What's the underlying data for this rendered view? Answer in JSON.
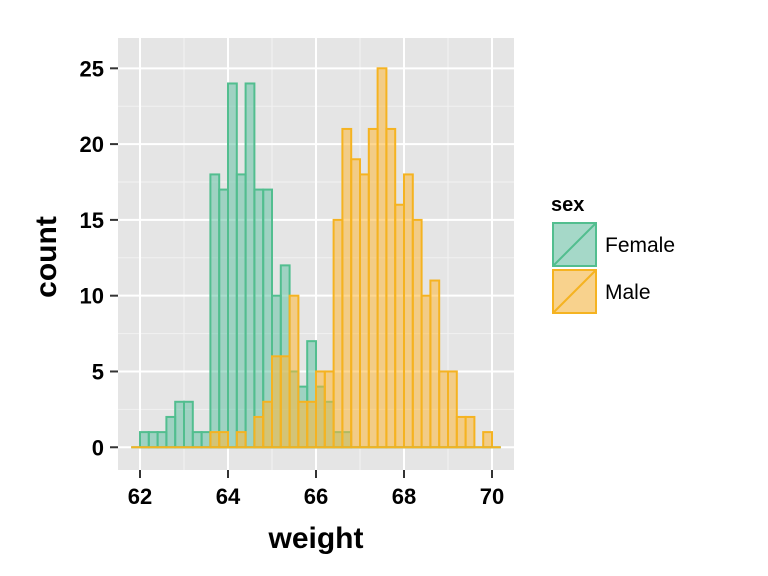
{
  "chart_data": {
    "type": "histogram",
    "title": "",
    "xlabel": "weight",
    "ylabel": "count",
    "xlim": [
      61.5,
      70.5
    ],
    "ylim": [
      -1.5,
      27
    ],
    "x_ticks": [
      62,
      64,
      66,
      68,
      70
    ],
    "y_ticks": [
      0,
      5,
      10,
      15,
      20,
      25
    ],
    "grid": true,
    "background": "#e5e5e5",
    "binwidth": 0.2,
    "legend": {
      "title": "sex",
      "position": "right"
    },
    "series": [
      {
        "name": "Female",
        "fill": "#66c2a5",
        "outline": "#52be8f",
        "bins_start": 61.8,
        "counts": [
          0,
          1,
          1,
          1,
          2,
          3,
          3,
          1,
          1,
          18,
          17,
          24,
          18,
          24,
          17,
          17,
          10,
          12,
          5,
          4,
          7,
          4,
          3,
          1,
          1,
          0,
          0,
          0,
          0,
          0,
          0,
          0,
          0,
          0,
          0,
          0,
          0,
          0,
          0,
          0,
          0,
          0
        ]
      },
      {
        "name": "Male",
        "fill": "#fdb83b",
        "outline": "#f5b321",
        "bins_start": 61.8,
        "counts": [
          0,
          0,
          0,
          0,
          0,
          0,
          0,
          0,
          0,
          1,
          1,
          0,
          1,
          0,
          2,
          3,
          6,
          6,
          10,
          3,
          3,
          5,
          5,
          15,
          21,
          19,
          18,
          21,
          25,
          21,
          16,
          18,
          15,
          10,
          11,
          5,
          5,
          2,
          2,
          0,
          1,
          0
        ]
      }
    ]
  }
}
